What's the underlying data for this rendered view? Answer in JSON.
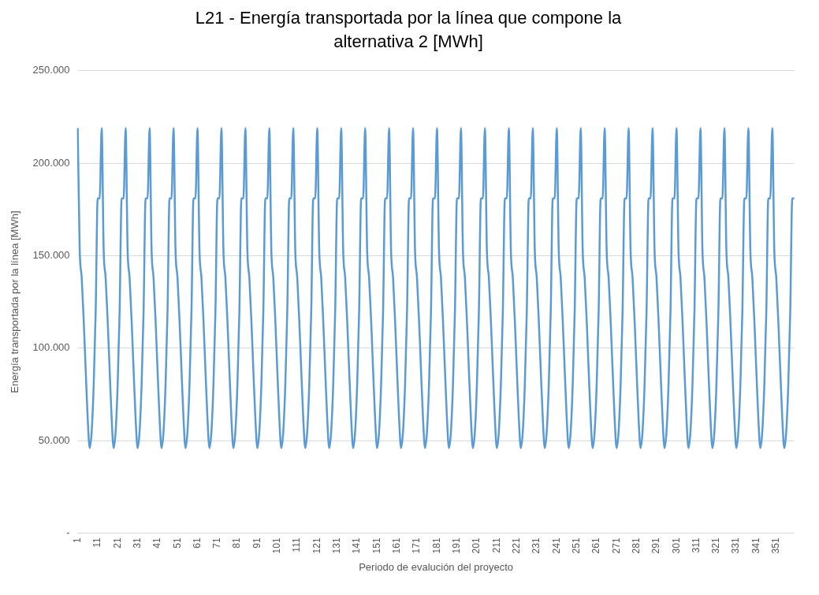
{
  "chart_data": {
    "type": "line",
    "title": "L21 - Energía transportada por la línea que compone la alternativa 2 [MWh]",
    "xlabel": "Periodo de evalución del proyecto",
    "ylabel": "Energía transportada por la línea [MWh]",
    "categories": [
      "1",
      null,
      null,
      null,
      null,
      null,
      null,
      null,
      null,
      null,
      "11",
      null,
      null,
      null,
      null,
      null,
      null,
      null,
      null,
      null,
      "21",
      null,
      null,
      null,
      null,
      null,
      null,
      null,
      null,
      null,
      "31",
      null,
      null,
      null,
      null,
      null,
      null,
      null,
      null,
      null,
      "41",
      null,
      null,
      null,
      null,
      null,
      null,
      null,
      null,
      null,
      "51",
      null,
      null,
      null,
      null,
      null,
      null,
      null,
      null,
      null,
      "61",
      null,
      null,
      null,
      null,
      null,
      null,
      null,
      null,
      null,
      "71",
      null,
      null,
      null,
      null,
      null,
      null,
      null,
      null,
      null,
      "81",
      null,
      null,
      null,
      null,
      null,
      null,
      null,
      null,
      null,
      "91",
      null,
      null,
      null,
      null,
      null,
      null,
      null,
      null,
      null,
      "101",
      null,
      null,
      null,
      null,
      null,
      null,
      null,
      null,
      null,
      "111",
      null,
      null,
      null,
      null,
      null,
      null,
      null,
      null,
      null,
      "121",
      null,
      null,
      null,
      null,
      null,
      null,
      null,
      null,
      null,
      "131",
      null,
      null,
      null,
      null,
      null,
      null,
      null,
      null,
      null,
      "141",
      null,
      null,
      null,
      null,
      null,
      null,
      null,
      null,
      null,
      "151",
      null,
      null,
      null,
      null,
      null,
      null,
      null,
      null,
      null,
      "161",
      null,
      null,
      null,
      null,
      null,
      null,
      null,
      null,
      null,
      "171",
      null,
      null,
      null,
      null,
      null,
      null,
      null,
      null,
      null,
      "181",
      null,
      null,
      null,
      null,
      null,
      null,
      null,
      null,
      null,
      "191",
      null,
      null,
      null,
      null,
      null,
      null,
      null,
      null,
      null,
      "201",
      null,
      null,
      null,
      null,
      null,
      null,
      null,
      null,
      null,
      "211",
      null,
      null,
      null,
      null,
      null,
      null,
      null,
      null,
      null,
      "221",
      null,
      null,
      null,
      null,
      null,
      null,
      null,
      null,
      null,
      "231",
      null,
      null,
      null,
      null,
      null,
      null,
      null,
      null,
      null,
      "241",
      null,
      null,
      null,
      null,
      null,
      null,
      null,
      null,
      null,
      "251",
      null,
      null,
      null,
      null,
      null,
      null,
      null,
      null,
      null,
      "261",
      null,
      null,
      null,
      null,
      null,
      null,
      null,
      null,
      null,
      "271",
      null,
      null,
      null,
      null,
      null,
      null,
      null,
      null,
      null,
      "281",
      null,
      null,
      null,
      null,
      null,
      null,
      null,
      null,
      null,
      "291",
      null,
      null,
      null,
      null,
      null,
      null,
      null,
      null,
      null,
      "301",
      null,
      null,
      null,
      null,
      null,
      null,
      null,
      null,
      null,
      "311",
      null,
      null,
      null,
      null,
      null,
      null,
      null,
      null,
      null,
      "321",
      null,
      null,
      null,
      null,
      null,
      null,
      null,
      null,
      null,
      "331",
      null,
      null,
      null,
      null,
      null,
      null,
      null,
      null,
      null,
      "341",
      null,
      null,
      null,
      null,
      null,
      null,
      null,
      null,
      null,
      "351",
      null,
      null,
      null,
      null,
      null,
      null,
      null,
      null,
      null
    ],
    "series": [
      {
        "color": "#5b9bd5",
        "values": [
          219000,
          153000,
          138000,
          115000,
          88000,
          62000,
          46000,
          55000,
          80000,
          120000,
          181000,
          181000,
          219000,
          153000,
          138000,
          115000,
          88000,
          62000,
          46000,
          55000,
          80000,
          120000,
          181000,
          181000,
          219000,
          153000,
          138000,
          115000,
          88000,
          62000,
          46000,
          55000,
          80000,
          120000,
          181000,
          181000,
          219000,
          153000,
          138000,
          115000,
          88000,
          62000,
          46000,
          55000,
          80000,
          120000,
          181000,
          181000,
          219000,
          153000,
          138000,
          115000,
          88000,
          62000,
          46000,
          55000,
          80000,
          120000,
          181000,
          181000,
          219000,
          153000,
          138000,
          115000,
          88000,
          62000,
          46000,
          55000,
          80000,
          120000,
          181000,
          181000,
          219000,
          153000,
          138000,
          115000,
          88000,
          62000,
          46000,
          55000,
          80000,
          120000,
          181000,
          181000,
          219000,
          153000,
          138000,
          115000,
          88000,
          62000,
          46000,
          55000,
          80000,
          120000,
          181000,
          181000,
          219000,
          153000,
          138000,
          115000,
          88000,
          62000,
          46000,
          55000,
          80000,
          120000,
          181000,
          181000,
          219000,
          153000,
          138000,
          115000,
          88000,
          62000,
          46000,
          55000,
          80000,
          120000,
          181000,
          181000,
          219000,
          153000,
          138000,
          115000,
          88000,
          62000,
          46000,
          55000,
          80000,
          120000,
          181000,
          181000,
          219000,
          153000,
          138000,
          115000,
          88000,
          62000,
          46000,
          55000,
          80000,
          120000,
          181000,
          181000,
          219000,
          153000,
          138000,
          115000,
          88000,
          62000,
          46000,
          55000,
          80000,
          120000,
          181000,
          181000,
          219000,
          153000,
          138000,
          115000,
          88000,
          62000,
          46000,
          55000,
          80000,
          120000,
          181000,
          181000,
          219000,
          153000,
          138000,
          115000,
          88000,
          62000,
          46000,
          55000,
          80000,
          120000,
          181000,
          181000,
          219000,
          153000,
          138000,
          115000,
          88000,
          62000,
          46000,
          55000,
          80000,
          120000,
          181000,
          181000,
          219000,
          153000,
          138000,
          115000,
          88000,
          62000,
          46000,
          55000,
          80000,
          120000,
          181000,
          181000,
          219000,
          153000,
          138000,
          115000,
          88000,
          62000,
          46000,
          55000,
          80000,
          120000,
          181000,
          181000,
          219000,
          153000,
          138000,
          115000,
          88000,
          62000,
          46000,
          55000,
          80000,
          120000,
          181000,
          181000,
          219000,
          153000,
          138000,
          115000,
          88000,
          62000,
          46000,
          55000,
          80000,
          120000,
          181000,
          181000,
          219000,
          153000,
          138000,
          115000,
          88000,
          62000,
          46000,
          55000,
          80000,
          120000,
          181000,
          181000,
          219000,
          153000,
          138000,
          115000,
          88000,
          62000,
          46000,
          55000,
          80000,
          120000,
          181000,
          181000,
          219000,
          153000,
          138000,
          115000,
          88000,
          62000,
          46000,
          55000,
          80000,
          120000,
          181000,
          181000,
          219000,
          153000,
          138000,
          115000,
          88000,
          62000,
          46000,
          55000,
          80000,
          120000,
          181000,
          181000,
          219000,
          153000,
          138000,
          115000,
          88000,
          62000,
          46000,
          55000,
          80000,
          120000,
          181000,
          181000,
          219000,
          153000,
          138000,
          115000,
          88000,
          62000,
          46000,
          55000,
          80000,
          120000,
          181000,
          181000,
          219000,
          153000,
          138000,
          115000,
          88000,
          62000,
          46000,
          55000,
          80000,
          120000,
          181000,
          181000,
          219000,
          153000,
          138000,
          115000,
          88000,
          62000,
          46000,
          55000,
          80000,
          120000,
          181000,
          181000,
          219000,
          153000,
          138000,
          115000,
          88000,
          62000,
          46000,
          55000,
          80000,
          120000,
          181000,
          181000,
          219000,
          153000,
          138000,
          115000,
          88000,
          62000,
          46000,
          55000,
          80000,
          120000,
          181000,
          181000
        ]
      }
    ],
    "ylim": [
      0,
      250000
    ],
    "yticks": [
      {
        "value": 0,
        "label": "-"
      },
      {
        "value": 50000,
        "label": "50.000"
      },
      {
        "value": 100000,
        "label": "100.000"
      },
      {
        "value": 150000,
        "label": "150.000"
      },
      {
        "value": 200000,
        "label": "200.000"
      },
      {
        "value": 250000,
        "label": "250.000"
      }
    ],
    "grid": "y",
    "legend": false,
    "marker": "none",
    "line_style": "solid"
  }
}
